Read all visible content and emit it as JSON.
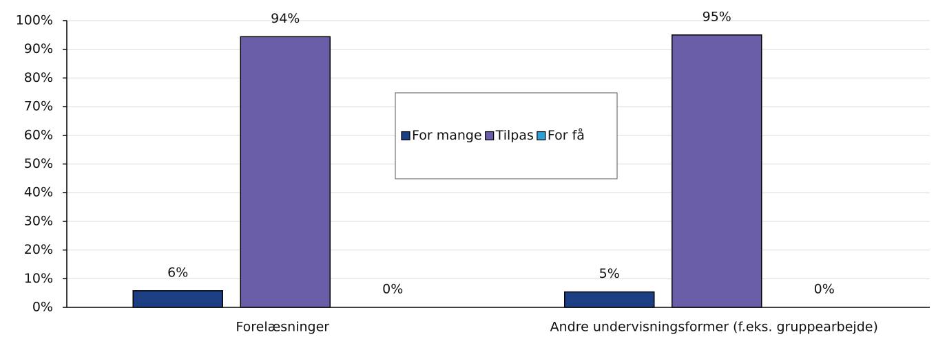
{
  "chart_data": {
    "type": "bar",
    "categories": [
      "Forelæsninger",
      "Andre undervisningsformer (f.eks. gruppearbejde)"
    ],
    "series": [
      {
        "name": "For mange",
        "color": "#1b3f82",
        "values": [
          5.8,
          5.4
        ],
        "value_labels": [
          "6%",
          "5%"
        ]
      },
      {
        "name": "Tilpas",
        "color": "#6a5ea8",
        "values": [
          94.4,
          95.0
        ],
        "value_labels": [
          "94%",
          "95%"
        ]
      },
      {
        "name": "For få",
        "color": "#2e9fd8",
        "values": [
          0,
          0
        ],
        "value_labels": [
          "0%",
          "0%"
        ]
      }
    ],
    "ylim": [
      0,
      100
    ],
    "yticks": [
      {
        "value": 0,
        "label": "0%"
      },
      {
        "value": 10,
        "label": "10%"
      },
      {
        "value": 20,
        "label": "20%"
      },
      {
        "value": 30,
        "label": "30%"
      },
      {
        "value": 40,
        "label": "40%"
      },
      {
        "value": 50,
        "label": "50%"
      },
      {
        "value": 60,
        "label": "60%"
      },
      {
        "value": 70,
        "label": "70%"
      },
      {
        "value": 80,
        "label": "80%"
      },
      {
        "value": 90,
        "label": "90%"
      },
      {
        "value": 100,
        "label": "100%"
      }
    ],
    "grid": true,
    "legend": "center"
  }
}
